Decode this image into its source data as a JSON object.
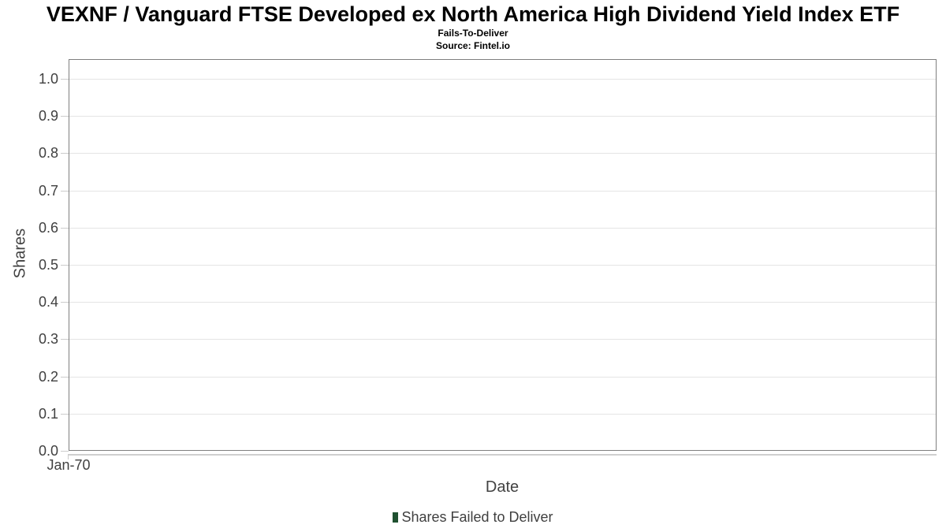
{
  "chart_data": {
    "type": "bar",
    "title": "VEXNF / Vanguard FTSE Developed ex North America High Dividend Yield Index ETF",
    "subtitle": "Fails-To-Deliver",
    "source": "Source: Fintel.io",
    "xlabel": "Date",
    "ylabel": "Shares",
    "x_ticks": [
      "Jan-70"
    ],
    "y_ticks": [
      "0.0",
      "0.1",
      "0.2",
      "0.3",
      "0.4",
      "0.5",
      "0.6",
      "0.7",
      "0.8",
      "0.9",
      "1.0"
    ],
    "ylim": [
      0,
      1.05
    ],
    "grid": true,
    "legend_position": "bottom-center",
    "categories": [],
    "series": [
      {
        "name": "Shares Failed to Deliver",
        "color": "#1f5130",
        "values": []
      }
    ]
  },
  "colors": {
    "background": "#ffffff",
    "plot_border": "#7f7f7f",
    "gridline": "#e5e5e5",
    "x_axis_line": "#cfcfcf",
    "tick_mark": "#cccccc",
    "axis_text": "#404040",
    "title_text": "#000000",
    "legend_marker": "#1f5130"
  }
}
